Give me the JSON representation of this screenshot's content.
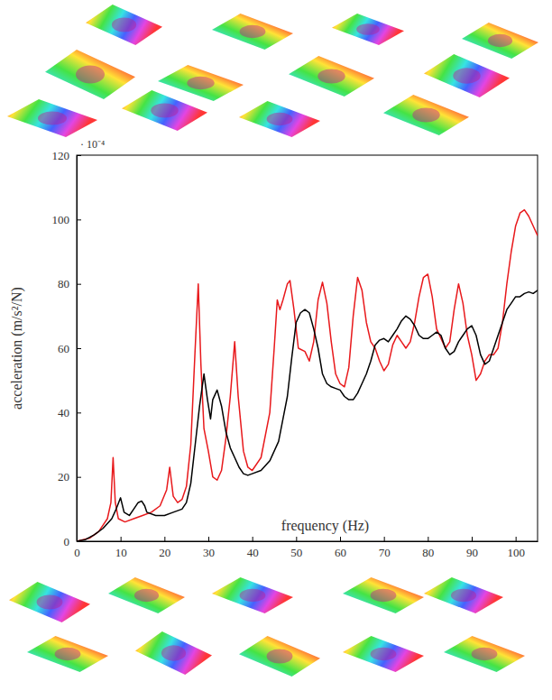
{
  "chart_data": {
    "type": "line",
    "xlabel": "frequency (Hz)",
    "ylabel": "acceleration (m/s²/N)",
    "annotations": [
      "· 10⁻⁴"
    ],
    "xlim": [
      0,
      105
    ],
    "xticks": [
      0,
      10,
      20,
      30,
      40,
      50,
      60,
      70,
      80,
      90,
      100
    ],
    "ylim": [
      0,
      120
    ],
    "yticks": [
      0,
      20,
      40,
      60,
      80,
      100,
      120
    ],
    "grid": false,
    "series": [
      {
        "color": "#e8191c",
        "x": [
          0,
          3,
          5,
          7,
          7.8,
          8.3,
          8.8,
          9.5,
          11,
          13,
          15,
          17,
          19,
          20.5,
          21.2,
          22,
          23,
          24,
          25,
          26,
          27,
          27.7,
          28.3,
          29,
          30,
          31,
          32,
          33,
          34,
          35,
          36,
          36.8,
          38,
          39,
          40,
          42,
          44,
          45,
          45.7,
          46.3,
          47,
          48,
          48.6,
          49.5,
          50.5,
          52,
          53,
          54,
          55,
          56,
          57,
          58,
          59,
          60,
          61,
          62,
          63,
          64,
          65,
          66,
          67,
          68,
          69,
          70,
          71,
          72,
          73,
          74,
          75,
          76,
          77,
          78,
          79,
          80,
          81,
          82,
          83,
          84,
          85,
          86,
          87,
          88,
          89,
          90,
          91,
          92,
          93,
          94,
          95,
          96,
          97,
          98,
          99,
          100,
          101,
          102,
          103,
          104,
          105
        ],
        "values": [
          0,
          1,
          3,
          7,
          12,
          26,
          12,
          7,
          6,
          7,
          8,
          9,
          11,
          16,
          23,
          14,
          12,
          13,
          17,
          30,
          60,
          80,
          55,
          35,
          28,
          20,
          19,
          22,
          32,
          45,
          62,
          45,
          28,
          23,
          22,
          26,
          40,
          60,
          75,
          72,
          75,
          80,
          81,
          72,
          60,
          59,
          56,
          62,
          75,
          80.5,
          74,
          62,
          52,
          49,
          48,
          54,
          70,
          82,
          78,
          68,
          62,
          60,
          56,
          53,
          55,
          61,
          64,
          62,
          60,
          62,
          68,
          76,
          82,
          83,
          76,
          66,
          63,
          60,
          62,
          72,
          80,
          74,
          64,
          58,
          50,
          52,
          56,
          58,
          58,
          60,
          68,
          80,
          90,
          98,
          102,
          103,
          101,
          98,
          95
        ]
      },
      {
        "color": "#000000",
        "x": [
          0,
          2,
          4,
          6,
          8,
          9,
          10,
          10.8,
          12,
          13,
          14,
          14.8,
          15.5,
          16,
          18,
          20,
          22,
          24,
          25,
          26,
          27,
          28,
          29,
          29.8,
          30.5,
          31,
          32,
          33,
          34,
          35,
          36,
          37,
          38,
          39,
          40,
          42,
          44,
          46,
          47,
          48,
          49,
          50,
          51,
          52,
          53,
          54,
          55,
          56,
          57,
          58,
          59,
          60,
          61,
          62,
          63,
          64,
          65,
          66,
          67,
          68,
          69,
          70,
          71,
          72,
          73,
          74,
          75,
          76,
          77,
          78,
          79,
          80,
          81,
          82,
          83,
          84,
          85,
          86,
          87,
          88,
          89,
          90,
          91,
          92,
          93,
          94,
          95,
          96,
          97,
          98,
          99,
          100,
          101,
          102,
          103,
          104,
          105
        ],
        "values": [
          0,
          0.5,
          2,
          4,
          7,
          10,
          13.5,
          9,
          8,
          10,
          12,
          12.5,
          11,
          9,
          8,
          8,
          9,
          10,
          12,
          18,
          30,
          42,
          52,
          44,
          38,
          44,
          47,
          42,
          34,
          29,
          26,
          23,
          21,
          20.5,
          21,
          22,
          25,
          31,
          38,
          45,
          57,
          68,
          71,
          72,
          71,
          66,
          60,
          52,
          49,
          48,
          47.5,
          47,
          45,
          44,
          44,
          46,
          49,
          52,
          56,
          61,
          62.5,
          63,
          62,
          64,
          66,
          68.5,
          70,
          69,
          67,
          64,
          63,
          63,
          64,
          65,
          64,
          60,
          58,
          59,
          62,
          64,
          66,
          67,
          64,
          58,
          55,
          56,
          60,
          64,
          68,
          72,
          74,
          76,
          76,
          77,
          77.5,
          77,
          78
        ]
      }
    ]
  }
}
